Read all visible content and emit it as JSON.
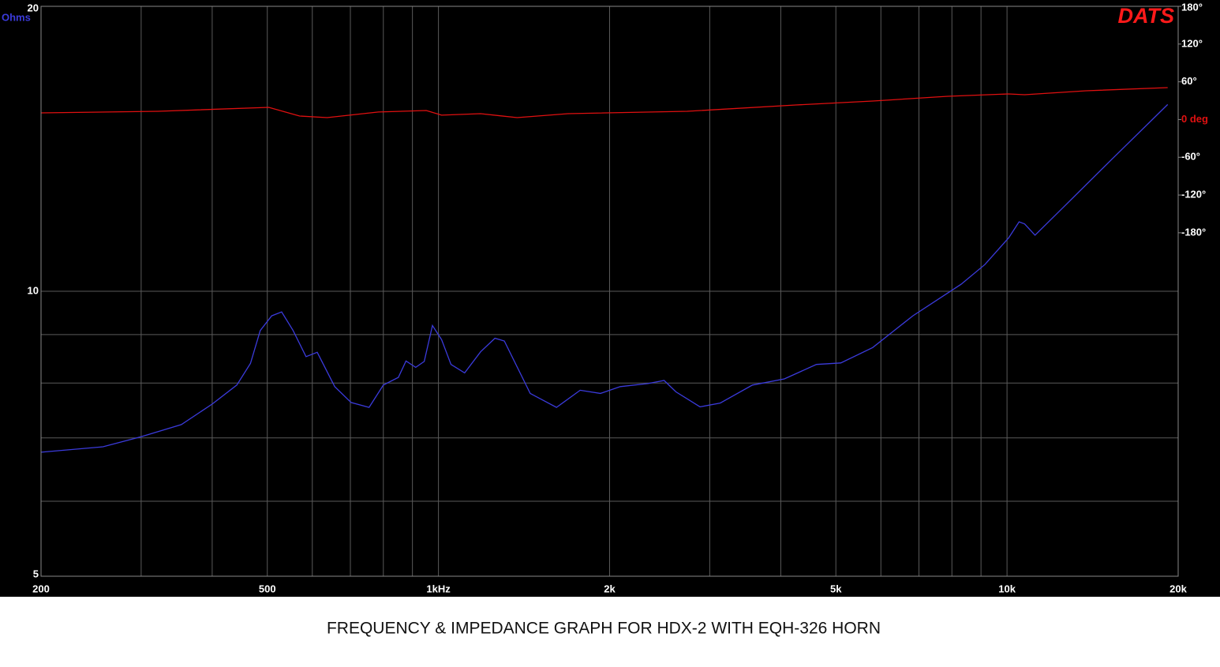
{
  "chart_data": {
    "type": "line",
    "title": "FREQUENCY & IMPEDANCE GRAPH FOR HDX-2 WITH EQH-326 HORN",
    "logo": "DATS",
    "ylabel": "Ohms",
    "xscale": "log",
    "yscale": "log",
    "grid": true,
    "xlim": [
      200,
      20000
    ],
    "xticks": [
      200,
      500,
      {
        "value": 1000,
        "label": "1kHz"
      },
      {
        "value": 2000,
        "label": "2k"
      },
      {
        "value": 5000,
        "label": "5k"
      },
      {
        "value": 10000,
        "label": "10k"
      },
      {
        "value": 20000,
        "label": "20k"
      }
    ],
    "xminor_ticks": [
      300,
      400,
      600,
      700,
      800,
      900,
      3000,
      4000,
      6000,
      7000,
      8000,
      9000
    ],
    "ylim": [
      5,
      20
    ],
    "yticks": [
      5,
      10,
      20
    ],
    "yminor_ticks": [
      6,
      7,
      8,
      9
    ],
    "y2lim": [
      -726,
      180
    ],
    "y2ticks": [
      {
        "value": 180,
        "label": "180°"
      },
      {
        "value": 120,
        "label": "120°"
      },
      {
        "value": 60,
        "label": "60°"
      },
      {
        "value": 0,
        "label": "0 deg"
      },
      {
        "value": -60,
        "label": "-60°"
      },
      {
        "value": -120,
        "label": "-120°"
      },
      {
        "value": -180,
        "label": "-180°"
      }
    ],
    "series": [
      {
        "name": "Impedance",
        "color": "#3b3bdc",
        "x": [
          200,
          257,
          300,
          353,
          400,
          442,
          467,
          486,
          509,
          530,
          555,
          585,
          612,
          657,
          702,
          755,
          800,
          850,
          877,
          912,
          944,
          976,
          1013,
          1052,
          1112,
          1186,
          1257,
          1306,
          1450,
          1613,
          1775,
          1927,
          2088,
          2337,
          2494,
          2616,
          2885,
          3131,
          3566,
          4059,
          4621,
          5100,
          5805,
          6830,
          8300,
          9140,
          10070,
          10500,
          10740,
          11200,
          12620,
          15310,
          19170
        ],
        "values": [
          6.76,
          6.85,
          7.02,
          7.23,
          7.6,
          7.96,
          8.39,
          9.09,
          9.42,
          9.51,
          9.09,
          8.53,
          8.62,
          7.93,
          7.63,
          7.54,
          7.96,
          8.11,
          8.44,
          8.31,
          8.43,
          9.2,
          8.89,
          8.37,
          8.2,
          8.63,
          8.92,
          8.86,
          7.8,
          7.54,
          7.86,
          7.8,
          7.93,
          7.99,
          8.05,
          7.83,
          7.55,
          7.62,
          7.96,
          8.08,
          8.37,
          8.4,
          8.72,
          9.42,
          10.17,
          10.67,
          11.39,
          11.84,
          11.78,
          11.46,
          12.3,
          13.8,
          15.75
        ]
      },
      {
        "name": "Phase",
        "color": "#e01010",
        "axis": "y2",
        "x": [
          200,
          321,
          503,
          570,
          637,
          784,
          952,
          1013,
          1186,
          1375,
          1690,
          2737,
          4250,
          5805,
          7860,
          10070,
          10740,
          13780,
          19170
        ],
        "values": [
          10.6,
          13.1,
          19.4,
          5.6,
          3.1,
          12,
          14.4,
          6.9,
          9.4,
          3.1,
          9.4,
          13.1,
          23.2,
          29.4,
          37,
          40.7,
          39.4,
          45.7,
          50.8
        ]
      }
    ]
  }
}
